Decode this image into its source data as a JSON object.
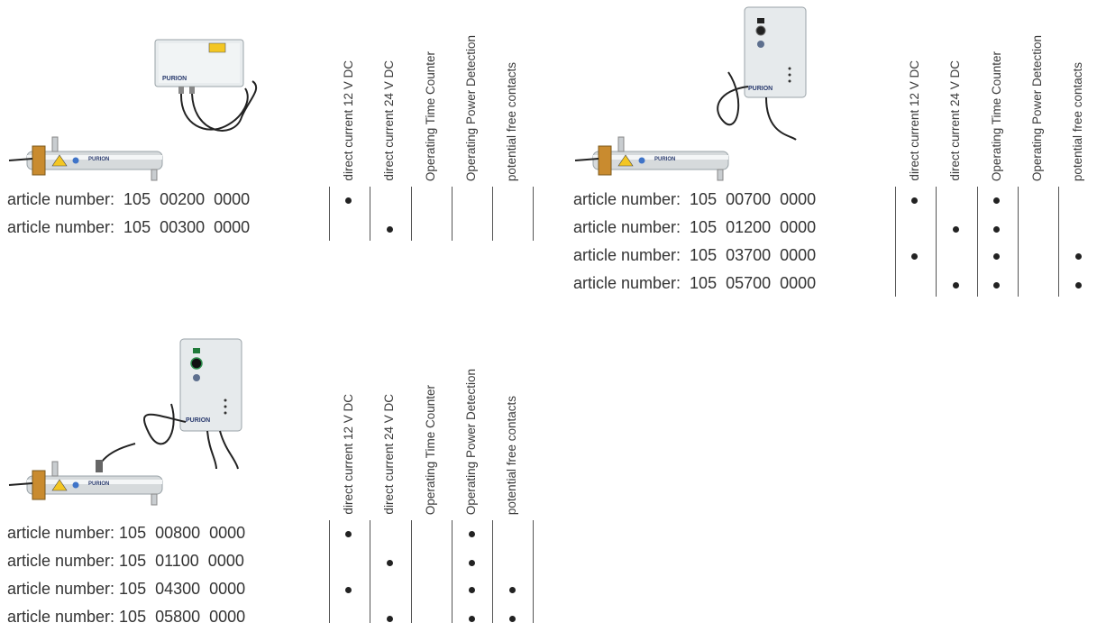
{
  "columns": [
    "direct current 12 V DC",
    "direct current 24 V DC",
    "Operating Time Counter",
    "Operating Power Detection",
    "potential free contacts"
  ],
  "products": [
    {
      "id": "product-1",
      "image_name": "uv-unit-with-basic-control-box",
      "brand_text": "PURION",
      "rows": [
        {
          "label": "article number:  105  00200  0000",
          "marks": [
            true,
            false,
            false,
            false,
            false
          ]
        },
        {
          "label": "article number:  105  00300  0000",
          "marks": [
            false,
            true,
            false,
            false,
            false
          ]
        }
      ]
    },
    {
      "id": "product-2",
      "image_name": "uv-unit-with-display-control-box",
      "brand_text": "PURION",
      "rows": [
        {
          "label": "article number:  105  00700  0000",
          "marks": [
            true,
            false,
            true,
            false,
            false
          ]
        },
        {
          "label": "article number:  105  01200  0000",
          "marks": [
            false,
            true,
            true,
            false,
            false
          ]
        },
        {
          "label": "article number:  105  03700  0000",
          "marks": [
            true,
            false,
            true,
            false,
            true
          ]
        },
        {
          "label": "article number:  105  05700  0000",
          "marks": [
            false,
            true,
            true,
            false,
            true
          ]
        }
      ]
    },
    {
      "id": "product-3",
      "image_name": "uv-unit-with-sensor-control-box",
      "brand_text": "PURION",
      "rows": [
        {
          "label": "article number: 105  00800  0000",
          "marks": [
            true,
            false,
            false,
            true,
            false
          ]
        },
        {
          "label": "article number: 105  01100  0000",
          "marks": [
            false,
            true,
            false,
            true,
            false
          ]
        },
        {
          "label": "article number: 105  04300  0000",
          "marks": [
            true,
            false,
            false,
            true,
            true
          ]
        },
        {
          "label": "article number: 105  05800  0000",
          "marks": [
            false,
            true,
            false,
            true,
            true
          ]
        }
      ]
    }
  ]
}
